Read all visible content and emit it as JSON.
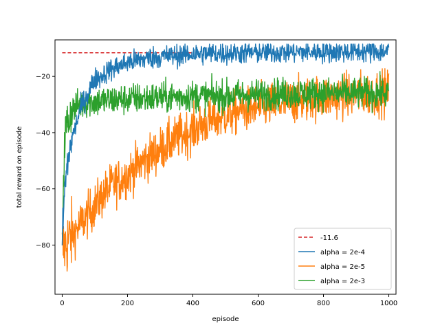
{
  "chart_data": {
    "type": "line",
    "title": "",
    "xlabel": "episode",
    "ylabel": "total reward on episode",
    "xlim": [
      -22,
      1022
    ],
    "ylim": [
      -97.5,
      -7
    ],
    "xticks": [
      0,
      200,
      400,
      600,
      800,
      1000
    ],
    "yticks": [
      -80,
      -60,
      -40,
      -20
    ],
    "grid": false,
    "legend_position": "lower right",
    "reference_line": {
      "name": "-11.6",
      "value": -11.6,
      "x_range": [
        0,
        400
      ],
      "color": "#d62728",
      "style": "dashed"
    },
    "series": [
      {
        "name": "alpha = 2e-4",
        "color": "#1f77b4",
        "x": [
          0,
          5,
          10,
          15,
          20,
          25,
          30,
          40,
          50,
          60,
          70,
          80,
          90,
          100,
          120,
          140,
          160,
          180,
          200,
          220,
          240,
          260,
          280,
          300,
          350,
          400,
          450,
          500,
          550,
          600,
          650,
          700,
          750,
          800,
          850,
          900,
          950,
          1000
        ],
        "values": [
          -79,
          -66,
          -57,
          -52,
          -49,
          -45,
          -42,
          -38,
          -34,
          -30,
          -28,
          -26,
          -23,
          -21,
          -20,
          -18,
          -17,
          -16,
          -15,
          -14.5,
          -14,
          -13.5,
          -13.2,
          -13,
          -12.5,
          -12,
          -11.8,
          -11.8,
          -11.6,
          -11.5,
          -11.4,
          -11.3,
          -11.3,
          -11.2,
          -11.2,
          -11.1,
          -11.1,
          -11.2
        ],
        "noise": 2.0
      },
      {
        "name": "alpha = 2e-5",
        "color": "#ff7f0e",
        "x": [
          0,
          10,
          20,
          30,
          40,
          60,
          80,
          100,
          120,
          150,
          200,
          250,
          300,
          350,
          400,
          450,
          500,
          550,
          600,
          650,
          700,
          750,
          800,
          850,
          900,
          950,
          1000
        ],
        "values": [
          -82,
          -80,
          -78,
          -77,
          -75,
          -72,
          -69,
          -66,
          -63,
          -59,
          -55,
          -50,
          -46,
          -42,
          -39,
          -36,
          -34,
          -32,
          -31,
          -30,
          -29,
          -28,
          -27.5,
          -27,
          -26.5,
          -26,
          -25.5
        ],
        "noise": 4.0
      },
      {
        "name": "alpha = 2e-3",
        "color": "#2ca02c",
        "x": [
          0,
          3,
          6,
          10,
          15,
          20,
          30,
          40,
          60,
          80,
          100,
          150,
          200,
          300,
          400,
          500,
          600,
          700,
          800,
          900,
          1000
        ],
        "values": [
          -80,
          -60,
          -48,
          -40,
          -37,
          -35,
          -32,
          -31,
          -29.5,
          -29,
          -29,
          -28.5,
          -28,
          -27.5,
          -27,
          -27,
          -26.5,
          -26,
          -26,
          -26,
          -26
        ],
        "noise": 2.8
      }
    ]
  }
}
